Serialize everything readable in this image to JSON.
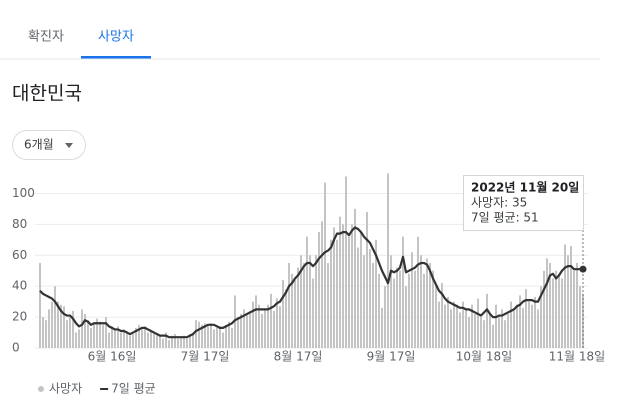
{
  "tabs": [
    "확진자",
    "사망자"
  ],
  "region": "대한민국",
  "range_select": "6개월",
  "chart_data": {
    "type": "bar",
    "categories": [
      null,
      null,
      null,
      null,
      null,
      null,
      null,
      null,
      null,
      null,
      null,
      null,
      null,
      null,
      null,
      null,
      null,
      null,
      null,
      null,
      null,
      null,
      null,
      null,
      "6월 16일",
      null,
      null,
      null,
      null,
      null,
      null,
      null,
      null,
      null,
      null,
      null,
      null,
      null,
      null,
      null,
      null,
      null,
      null,
      null,
      null,
      null,
      null,
      null,
      null,
      null,
      null,
      null,
      null,
      null,
      null,
      "7월 17일",
      null,
      null,
      null,
      null,
      null,
      null,
      null,
      null,
      null,
      null,
      null,
      null,
      null,
      null,
      null,
      null,
      null,
      null,
      null,
      null,
      null,
      null,
      null,
      null,
      null,
      null,
      null,
      null,
      null,
      null,
      "8월 17일",
      null,
      null,
      null,
      null,
      null,
      null,
      null,
      null,
      null,
      null,
      null,
      null,
      null,
      null,
      null,
      null,
      null,
      null,
      null,
      null,
      null,
      null,
      null,
      null,
      null,
      null,
      null,
      null,
      null,
      null,
      "9월 17일",
      null,
      null,
      null,
      null,
      null,
      null,
      null,
      null,
      null,
      null,
      null,
      null,
      null,
      null,
      null,
      null,
      null,
      null,
      null,
      null,
      null,
      null,
      null,
      null,
      null,
      null,
      null,
      null,
      null,
      null,
      "10월 18일",
      null,
      null,
      null,
      null,
      null,
      null,
      null,
      null,
      null,
      null,
      null,
      null,
      null,
      null,
      null,
      null,
      null,
      null,
      null,
      null,
      null,
      null,
      null,
      null,
      null,
      null,
      null,
      null,
      null,
      null,
      "11월 18일",
      null,
      null
    ],
    "series": [
      {
        "name": "사망자",
        "type": "bar",
        "color": "#c4c4c4",
        "values": [
          55,
          20,
          18,
          25,
          30,
          40,
          30,
          28,
          27,
          18,
          20,
          24,
          10,
          12,
          25,
          22,
          18,
          13,
          16,
          19,
          17,
          15,
          20,
          10,
          14,
          12,
          14,
          10,
          12,
          11,
          8,
          9,
          13,
          15,
          12,
          14,
          10,
          11,
          9,
          8,
          8,
          6,
          10,
          5,
          8,
          9,
          6,
          7,
          8,
          6,
          9,
          10,
          18,
          17,
          15,
          16,
          14,
          16,
          12,
          13,
          14,
          10,
          15,
          17,
          13,
          34,
          20,
          22,
          25,
          21,
          24,
          30,
          34,
          28,
          22,
          25,
          28,
          35,
          24,
          32,
          27,
          44,
          38,
          55,
          48,
          44,
          52,
          60,
          55,
          72,
          60,
          45,
          60,
          75,
          82,
          107,
          55,
          70,
          78,
          70,
          85,
          80,
          111,
          72,
          80,
          90,
          65,
          75,
          60,
          88,
          64,
          55,
          70,
          48,
          26,
          40,
          113,
          60,
          45,
          52,
          50,
          72,
          40,
          48,
          62,
          50,
          72,
          60,
          48,
          58,
          55,
          50,
          40,
          30,
          42,
          28,
          33,
          25,
          30,
          28,
          23,
          30,
          25,
          20,
          28,
          22,
          32,
          20,
          18,
          35,
          22,
          15,
          28,
          20,
          25,
          18,
          22,
          30,
          24,
          28,
          34,
          26,
          38,
          30,
          28,
          33,
          25,
          40,
          50,
          58,
          55,
          45,
          50,
          48,
          45,
          67,
          60,
          66,
          50,
          55,
          40,
          35
        ]
      },
      {
        "name": "7일 평균",
        "type": "line",
        "color": "#333333",
        "values": [
          37,
          35,
          34,
          33,
          32,
          30,
          27,
          24,
          22,
          21,
          21,
          19,
          16,
          14,
          15,
          18,
          17,
          15,
          16,
          16,
          16,
          16,
          16,
          14,
          13,
          12,
          12,
          11,
          11,
          10,
          9,
          10,
          11,
          12,
          13,
          13,
          12,
          11,
          10,
          9,
          8,
          8,
          8,
          7,
          7,
          7,
          7,
          7,
          7,
          7,
          8,
          9,
          11,
          12,
          13,
          14,
          15,
          15,
          15,
          14,
          13,
          13,
          14,
          15,
          16,
          18,
          19,
          20,
          21,
          22,
          23,
          24,
          25,
          25,
          25,
          25,
          25,
          26,
          27,
          29,
          30,
          33,
          36,
          40,
          42,
          45,
          47,
          50,
          53,
          55,
          55,
          53,
          55,
          58,
          60,
          62,
          63,
          65,
          70,
          74,
          74,
          75,
          75,
          73,
          76,
          78,
          77,
          75,
          72,
          70,
          68,
          64,
          60,
          55,
          50,
          46,
          42,
          50,
          49,
          50,
          52,
          59,
          49,
          50,
          51,
          52,
          54,
          55,
          55,
          54,
          50,
          45,
          41,
          37,
          35,
          32,
          30,
          29,
          28,
          27,
          26,
          26,
          25,
          25,
          24,
          23,
          22,
          21,
          23,
          25,
          22,
          20,
          20,
          21,
          21,
          22,
          23,
          24,
          25,
          27,
          28,
          30,
          31,
          31,
          31,
          30,
          30,
          34,
          38,
          42,
          47,
          48,
          45,
          47,
          50,
          52,
          53,
          53,
          51,
          51,
          51,
          51
        ]
      }
    ],
    "ylim": [
      0,
      110
    ],
    "yticks": [
      0,
      20,
      40,
      60,
      80,
      100
    ],
    "grid": true,
    "tooltip": {
      "date": "2022년 11월 20일",
      "lines": [
        "사망자: 35",
        "7일 평균: 51"
      ]
    }
  }
}
